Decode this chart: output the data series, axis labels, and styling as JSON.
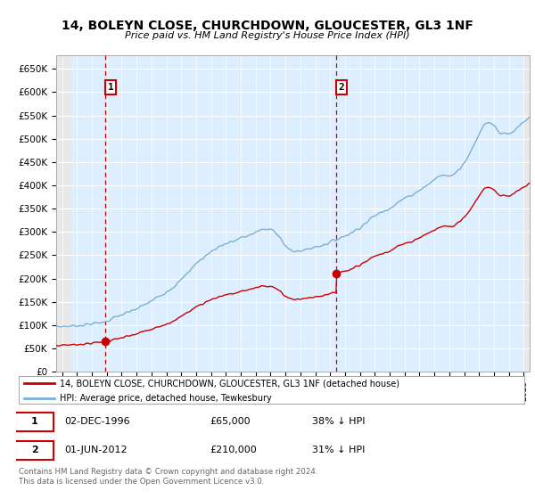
{
  "title": "14, BOLEYN CLOSE, CHURCHDOWN, GLOUCESTER, GL3 1NF",
  "subtitle": "Price paid vs. HM Land Registry's House Price Index (HPI)",
  "legend_line1": "14, BOLEYN CLOSE, CHURCHDOWN, GLOUCESTER, GL3 1NF (detached house)",
  "legend_line2": "HPI: Average price, detached house, Tewkesbury",
  "annotation1_date": "02-DEC-1996",
  "annotation1_price": "£65,000",
  "annotation1_hpi": "38% ↓ HPI",
  "annotation2_date": "01-JUN-2012",
  "annotation2_price": "£210,000",
  "annotation2_hpi": "31% ↓ HPI",
  "footnote": "Contains HM Land Registry data © Crown copyright and database right 2024.\nThis data is licensed under the Open Government Licence v3.0.",
  "red_color": "#cc0000",
  "blue_color": "#7ab0d4",
  "blue_fill": "#ddeeff",
  "annotation_box_color": "#cc0000",
  "grid_color": "#cccccc",
  "hatch_bg": "#e8e8e8",
  "ylim": [
    0,
    680000
  ],
  "yticks": [
    0,
    50000,
    100000,
    150000,
    200000,
    250000,
    300000,
    350000,
    400000,
    450000,
    500000,
    550000,
    600000,
    650000
  ],
  "xlim_start": 1993.6,
  "xlim_end": 2025.4,
  "sale1_x": 1996.92,
  "sale1_y": 65000,
  "sale2_x": 2012.42,
  "sale2_y": 210000,
  "vline1_x": 1996.92,
  "vline2_x": 2012.42,
  "hpi_anchors_x": [
    1993.6,
    1994.0,
    1994.5,
    1995.0,
    1995.5,
    1996.0,
    1996.5,
    1997.0,
    1997.5,
    1998.0,
    1998.5,
    1999.0,
    1999.5,
    2000.0,
    2000.5,
    2001.0,
    2001.5,
    2002.0,
    2002.5,
    2003.0,
    2003.5,
    2004.0,
    2004.5,
    2005.0,
    2005.5,
    2006.0,
    2006.5,
    2007.0,
    2007.5,
    2008.0,
    2008.5,
    2009.0,
    2009.5,
    2010.0,
    2010.5,
    2011.0,
    2011.5,
    2012.0,
    2012.5,
    2013.0,
    2013.5,
    2014.0,
    2014.5,
    2015.0,
    2015.5,
    2016.0,
    2016.5,
    2017.0,
    2017.5,
    2018.0,
    2018.5,
    2019.0,
    2019.5,
    2020.0,
    2020.5,
    2021.0,
    2021.5,
    2022.0,
    2022.5,
    2023.0,
    2023.5,
    2024.0,
    2024.5,
    2025.0,
    2025.4
  ],
  "hpi_anchors_y": [
    97000,
    97500,
    98000,
    99000,
    101000,
    103000,
    105000,
    109000,
    116000,
    122000,
    128000,
    135000,
    143000,
    152000,
    162000,
    172000,
    183000,
    197000,
    215000,
    232000,
    245000,
    258000,
    268000,
    275000,
    280000,
    287000,
    292000,
    300000,
    305000,
    305000,
    295000,
    270000,
    258000,
    260000,
    263000,
    268000,
    272000,
    278000,
    285000,
    292000,
    300000,
    310000,
    322000,
    335000,
    343000,
    352000,
    362000,
    372000,
    380000,
    390000,
    400000,
    412000,
    422000,
    420000,
    430000,
    450000,
    475000,
    510000,
    535000,
    530000,
    510000,
    510000,
    520000,
    535000,
    545000
  ]
}
